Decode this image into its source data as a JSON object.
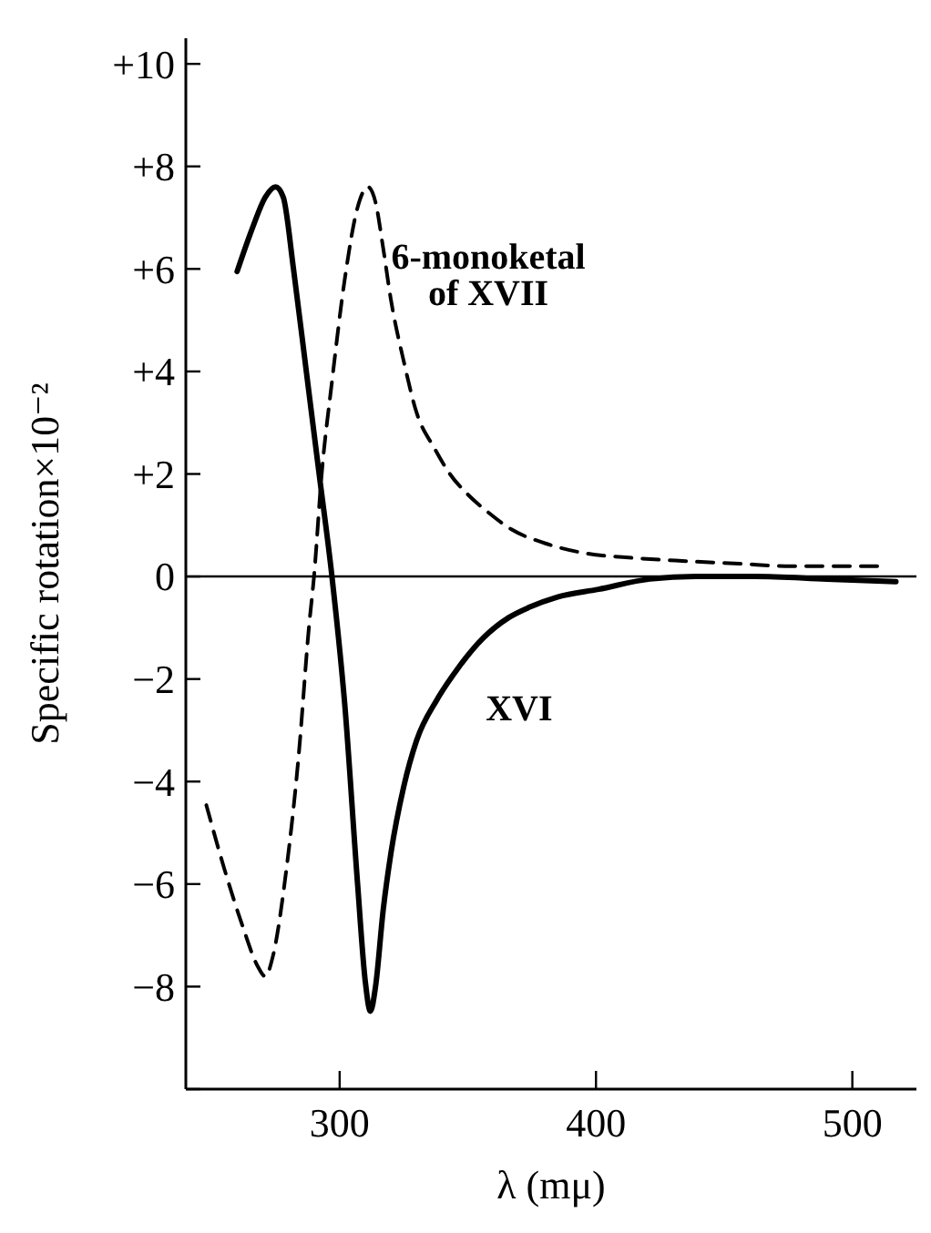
{
  "chart_data": {
    "type": "line",
    "xlabel": "λ (mμ)",
    "ylabel": "Specific rotation×10⁻²",
    "xlim": [
      240,
      525
    ],
    "xticks": [
      300,
      400,
      500
    ],
    "ylim": [
      -10,
      10.5
    ],
    "yticks": [
      {
        "value": 10,
        "label": "+10"
      },
      {
        "value": 8,
        "label": "+8"
      },
      {
        "value": 6,
        "label": "+6"
      },
      {
        "value": 4,
        "label": "+4"
      },
      {
        "value": 2,
        "label": "+2"
      },
      0,
      {
        "value": -2,
        "label": "−2"
      },
      {
        "value": -4,
        "label": "−4"
      },
      {
        "value": -6,
        "label": "−6"
      },
      {
        "value": -8,
        "label": "−8"
      },
      {
        "value": -10,
        "label": null
      }
    ],
    "grid": false,
    "ref_lines": [
      {
        "axis": "y",
        "value": 0
      }
    ],
    "series": [
      {
        "name": "XVI",
        "color": "#000000",
        "line_style": "solid",
        "x": [
          260,
          266,
          271,
          275,
          278,
          282,
          287,
          292,
          297,
          302,
          307,
          310,
          312,
          314,
          317,
          320,
          325,
          330,
          338,
          346,
          356,
          366,
          374,
          385,
          401,
          421,
          440,
          462,
          490,
          517
        ],
        "values": [
          5.95,
          6.8,
          7.4,
          7.6,
          7.4,
          6.0,
          4.0,
          2.0,
          0,
          -2.5,
          -6.0,
          -7.9,
          -8.48,
          -8.0,
          -6.5,
          -5.4,
          -4.1,
          -3.2,
          -2.4,
          -1.8,
          -1.2,
          -0.8,
          -0.6,
          -0.4,
          -0.25,
          -0.05,
          0,
          0,
          -0.05,
          -0.1
        ]
      },
      {
        "name": "6-monoketal of XVII",
        "color": "#000000",
        "line_style": "dashed",
        "x": [
          248,
          255,
          262,
          268,
          271,
          274,
          279,
          284,
          288,
          290,
          293,
          297,
          302,
          307,
          311,
          314,
          317,
          320,
          325,
          330,
          337,
          343,
          350,
          358,
          367,
          380,
          394,
          415,
          435,
          456,
          476,
          493,
          510
        ],
        "values": [
          -4.46,
          -5.7,
          -6.8,
          -7.6,
          -7.8,
          -7.4,
          -5.8,
          -3.5,
          -1.0,
          0,
          2.0,
          3.8,
          5.8,
          7.2,
          7.6,
          7.3,
          6.4,
          5.4,
          4.2,
          3.2,
          2.5,
          2.0,
          1.6,
          1.25,
          0.92,
          0.65,
          0.47,
          0.36,
          0.3,
          0.25,
          0.2,
          0.2,
          0.2
        ]
      }
    ]
  }
}
